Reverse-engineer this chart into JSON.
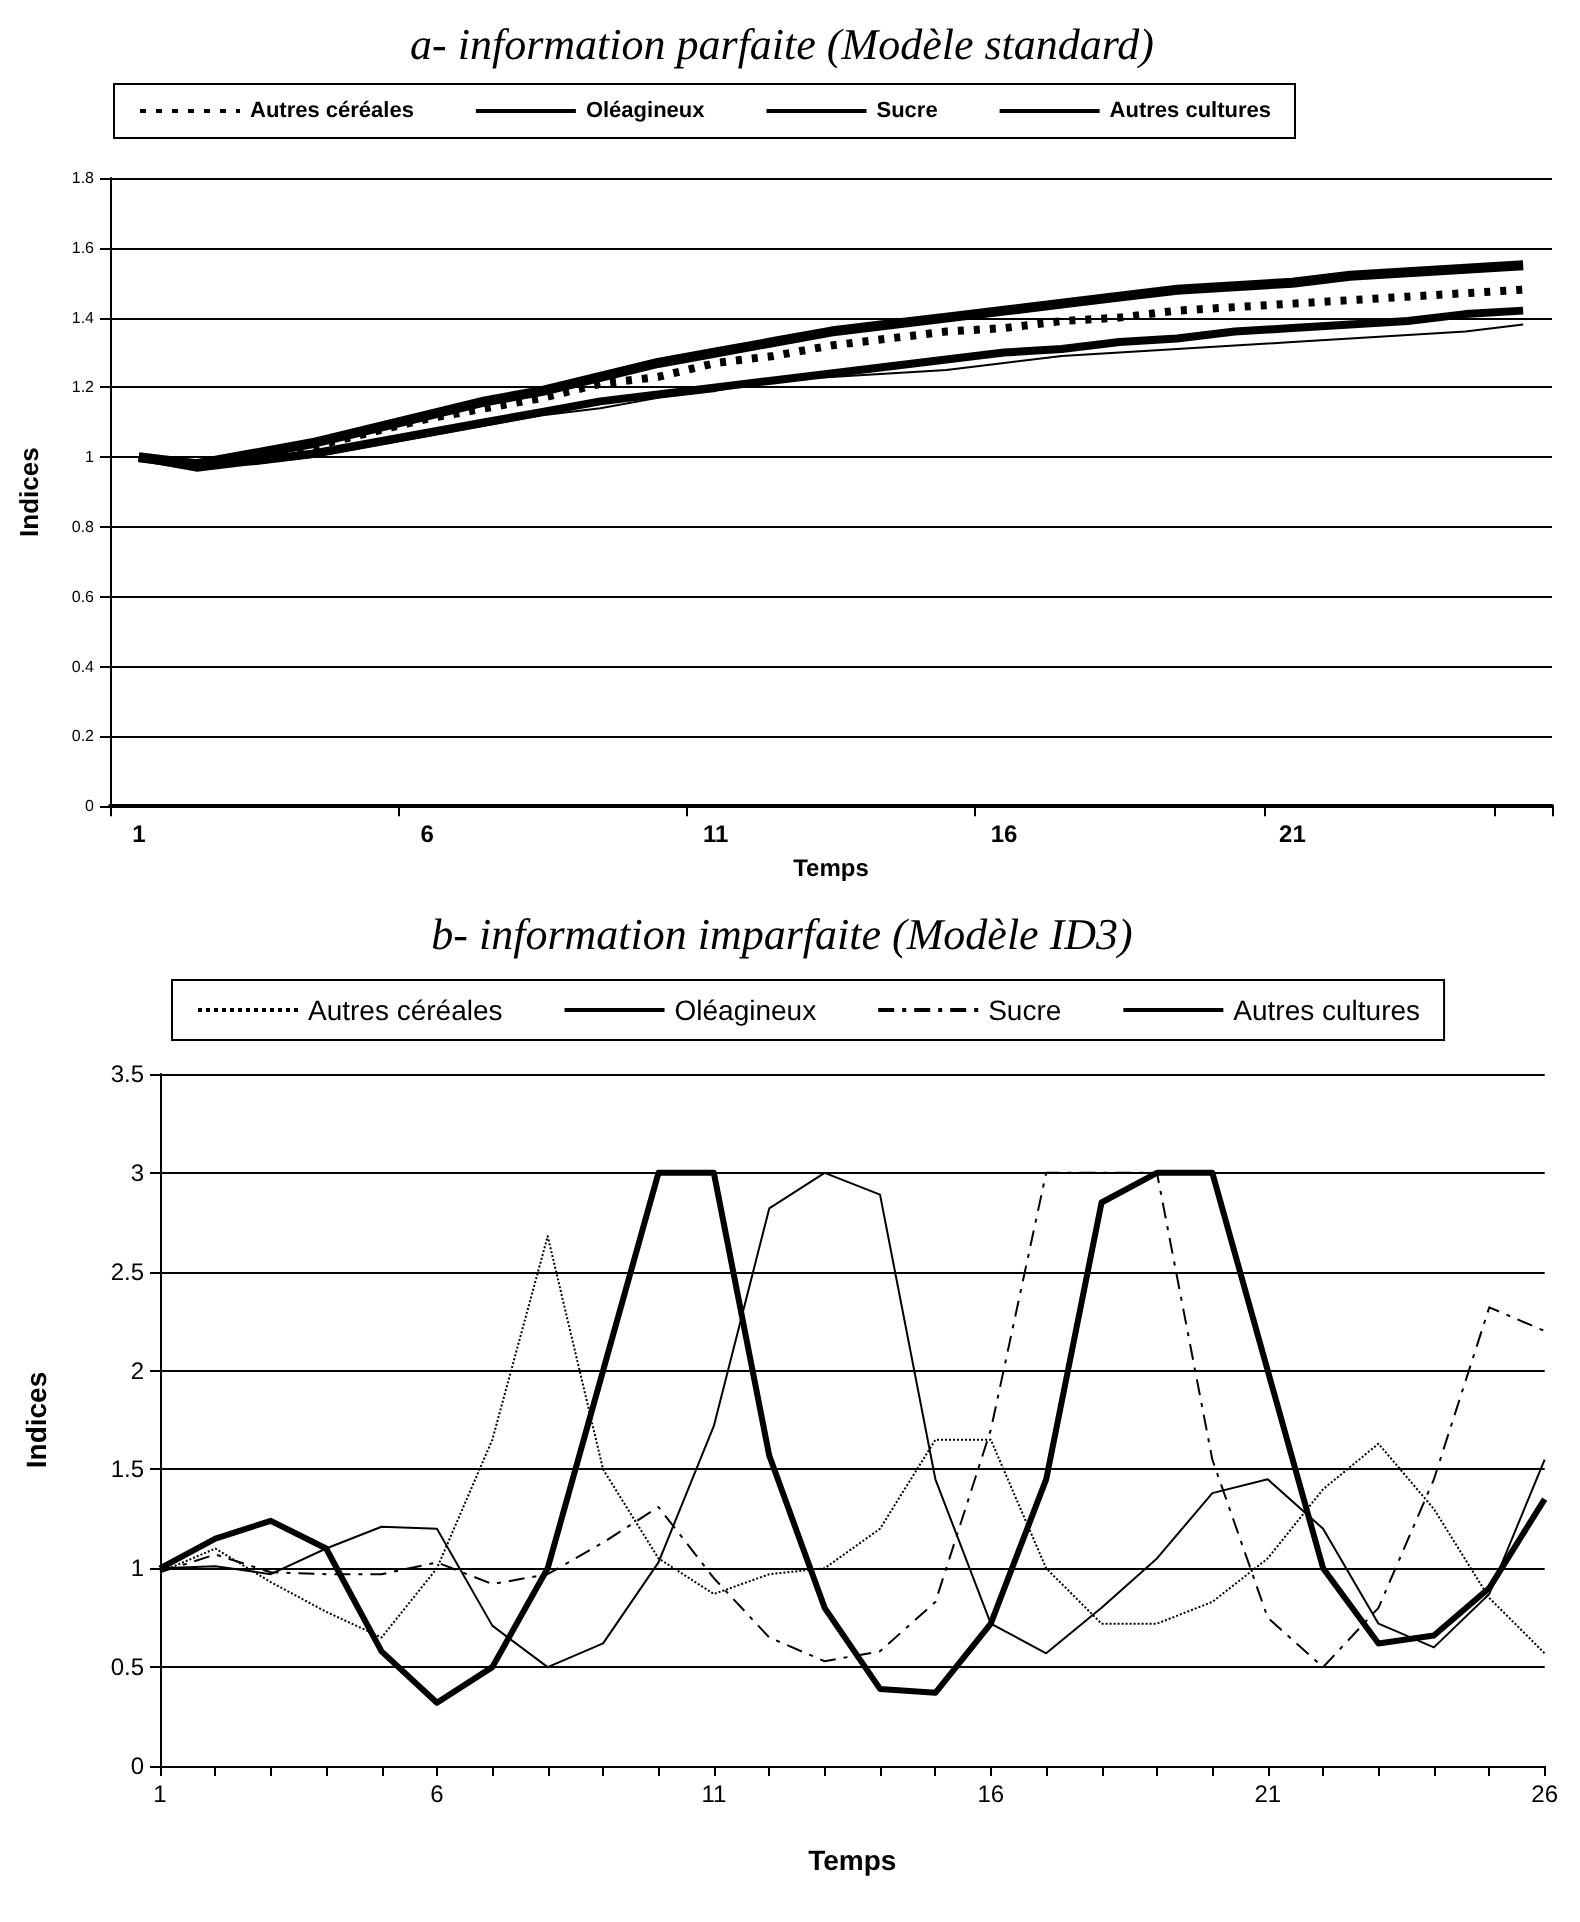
{
  "chart_data": [
    {
      "type": "line",
      "title": "a- information parfaite (Modèle standard)",
      "xlabel": "Temps",
      "ylabel": "Indices",
      "categories": [
        "1",
        null,
        null,
        null,
        null,
        "6",
        null,
        null,
        null,
        null,
        "11",
        null,
        null,
        null,
        null,
        "16",
        null,
        null,
        null,
        null,
        "21",
        null,
        null,
        null,
        null
      ],
      "ylim": [
        0,
        1.8
      ],
      "yticks": [
        0,
        0.2,
        0.4,
        0.6,
        0.8,
        1,
        1.2,
        1.4,
        1.6,
        1.8
      ],
      "grid": "y",
      "legend": "top",
      "marker": "none",
      "series": [
        {
          "name": "Autres céréales",
          "color": "#000000",
          "line_style": "dashed",
          "values": [
            1.0,
            0.98,
            1.0,
            1.03,
            1.07,
            1.11,
            1.14,
            1.17,
            1.21,
            1.23,
            1.27,
            1.29,
            1.32,
            1.34,
            1.36,
            1.37,
            1.39,
            1.4,
            1.42,
            1.43,
            1.44,
            1.45,
            1.46,
            1.47,
            1.48
          ]
        },
        {
          "name": "Oléagineux",
          "color": "#000000",
          "line_style": "solid",
          "values": [
            1.0,
            0.97,
            0.99,
            1.01,
            1.04,
            1.07,
            1.1,
            1.13,
            1.16,
            1.18,
            1.2,
            1.22,
            1.24,
            1.26,
            1.28,
            1.3,
            1.31,
            1.33,
            1.34,
            1.36,
            1.37,
            1.38,
            1.39,
            1.41,
            1.42
          ]
        },
        {
          "name": "Sucre",
          "color": "#000000",
          "line_style": "solid",
          "values": [
            1.0,
            0.98,
            0.98,
            1.0,
            1.03,
            1.06,
            1.09,
            1.12,
            1.14,
            1.17,
            1.19,
            1.22,
            1.23,
            1.24,
            1.25,
            1.27,
            1.29,
            1.3,
            1.31,
            1.32,
            1.33,
            1.34,
            1.35,
            1.36,
            1.38
          ]
        },
        {
          "name": "Autres cultures",
          "color": "#000000",
          "line_style": "solid",
          "values": [
            1.0,
            0.98,
            1.01,
            1.04,
            1.08,
            1.12,
            1.16,
            1.19,
            1.23,
            1.27,
            1.3,
            1.33,
            1.36,
            1.38,
            1.4,
            1.42,
            1.44,
            1.46,
            1.48,
            1.49,
            1.5,
            1.52,
            1.53,
            1.54,
            1.55
          ]
        }
      ]
    },
    {
      "type": "line",
      "title": "b- information imparfaite (Modèle ID3)",
      "xlabel": "Temps",
      "ylabel": "Indices",
      "categories": [
        "1",
        null,
        null,
        null,
        null,
        "6",
        null,
        null,
        null,
        null,
        "11",
        null,
        null,
        null,
        null,
        "16",
        null,
        null,
        null,
        null,
        "21",
        null,
        null,
        null,
        null,
        "26"
      ],
      "ylim": [
        0,
        3.5
      ],
      "yticks": [
        0,
        0.5,
        1,
        1.5,
        2,
        2.5,
        3,
        3.5
      ],
      "grid": "y",
      "legend": "top",
      "marker": "none",
      "series": [
        {
          "name": "Autres céréales",
          "color": "#000000",
          "line_style": "dotted",
          "values": [
            0.98,
            1.1,
            0.93,
            0.78,
            0.65,
            1.0,
            1.65,
            2.68,
            1.5,
            1.05,
            0.87,
            0.97,
            1.0,
            1.2,
            1.65,
            1.65,
            1.0,
            0.72,
            0.72,
            0.83,
            1.05,
            1.4,
            1.63,
            1.3,
            0.85,
            0.57
          ]
        },
        {
          "name": "Oléagineux",
          "color": "#000000",
          "line_style": "solid",
          "values": [
            1.0,
            1.15,
            1.24,
            1.1,
            0.58,
            0.32,
            0.5,
            1.0,
            2.0,
            3.0,
            3.0,
            1.57,
            0.8,
            0.39,
            0.37,
            0.72,
            1.45,
            2.85,
            3.0,
            3.0,
            2.0,
            1.0,
            0.62,
            0.66,
            0.9,
            1.35
          ]
        },
        {
          "name": "Sucre",
          "color": "#000000",
          "line_style": "dashed",
          "values": [
            0.98,
            1.07,
            0.98,
            0.97,
            0.97,
            1.03,
            0.92,
            0.97,
            1.13,
            1.31,
            0.95,
            0.65,
            0.53,
            0.58,
            0.83,
            1.7,
            3.0,
            3.0,
            3.0,
            1.55,
            0.75,
            0.5,
            0.8,
            1.45,
            2.32,
            2.2
          ]
        },
        {
          "name": "Autres cultures",
          "color": "#000000",
          "line_style": "solid",
          "values": [
            1.0,
            1.01,
            0.97,
            1.1,
            1.21,
            1.2,
            0.71,
            0.5,
            0.62,
            1.03,
            1.72,
            2.82,
            3.0,
            2.89,
            1.45,
            0.72,
            0.57,
            0.8,
            1.05,
            1.38,
            1.45,
            1.2,
            0.72,
            0.6,
            0.87,
            1.55
          ]
        }
      ]
    }
  ]
}
